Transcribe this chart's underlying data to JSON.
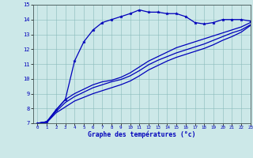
{
  "title": "Graphe des températures (°c)",
  "bg_color": "#cce8e8",
  "line_color": "#0000bb",
  "xlim": [
    -0.5,
    23
  ],
  "ylim": [
    7,
    15
  ],
  "xticks": [
    0,
    1,
    2,
    3,
    4,
    5,
    6,
    7,
    8,
    9,
    10,
    11,
    12,
    13,
    14,
    15,
    16,
    17,
    18,
    19,
    20,
    21,
    22,
    23
  ],
  "yticks": [
    7,
    8,
    9,
    10,
    11,
    12,
    13,
    14,
    15
  ],
  "series": [
    {
      "x": [
        0,
        1,
        2,
        3,
        4,
        5,
        6,
        7,
        8,
        9,
        10,
        11,
        12,
        13,
        14,
        15,
        16,
        17,
        18,
        19,
        20,
        21,
        22,
        23
      ],
      "y": [
        7.0,
        7.1,
        7.9,
        8.6,
        11.2,
        12.5,
        13.3,
        13.8,
        14.0,
        14.2,
        14.4,
        14.65,
        14.5,
        14.5,
        14.4,
        14.4,
        14.2,
        13.8,
        13.7,
        13.8,
        14.0,
        14.0,
        14.0,
        13.9
      ],
      "marker": true
    },
    {
      "x": [
        0,
        1,
        2,
        3,
        4,
        5,
        6,
        7,
        8,
        9,
        10,
        11,
        12,
        13,
        14,
        15,
        16,
        17,
        18,
        19,
        20,
        21,
        22,
        23
      ],
      "y": [
        7.0,
        7.1,
        7.9,
        8.6,
        9.0,
        9.3,
        9.6,
        9.8,
        9.9,
        10.1,
        10.4,
        10.8,
        11.2,
        11.5,
        11.8,
        12.1,
        12.3,
        12.5,
        12.7,
        12.9,
        13.1,
        13.3,
        13.5,
        13.8
      ],
      "marker": false
    },
    {
      "x": [
        0,
        1,
        2,
        3,
        4,
        5,
        6,
        7,
        8,
        9,
        10,
        11,
        12,
        13,
        14,
        15,
        16,
        17,
        18,
        19,
        20,
        21,
        22,
        23
      ],
      "y": [
        7.0,
        7.1,
        7.8,
        8.4,
        8.8,
        9.1,
        9.4,
        9.6,
        9.8,
        9.95,
        10.2,
        10.55,
        10.95,
        11.25,
        11.5,
        11.75,
        11.95,
        12.15,
        12.35,
        12.6,
        12.85,
        13.1,
        13.3,
        13.65
      ],
      "marker": false
    },
    {
      "x": [
        0,
        1,
        2,
        3,
        4,
        5,
        6,
        7,
        8,
        9,
        10,
        11,
        12,
        13,
        14,
        15,
        16,
        17,
        18,
        19,
        20,
        21,
        22,
        23
      ],
      "y": [
        7.0,
        7.05,
        7.7,
        8.1,
        8.5,
        8.75,
        9.0,
        9.2,
        9.4,
        9.6,
        9.85,
        10.2,
        10.6,
        10.9,
        11.2,
        11.45,
        11.65,
        11.85,
        12.05,
        12.3,
        12.6,
        12.85,
        13.15,
        13.6
      ],
      "marker": false
    }
  ]
}
